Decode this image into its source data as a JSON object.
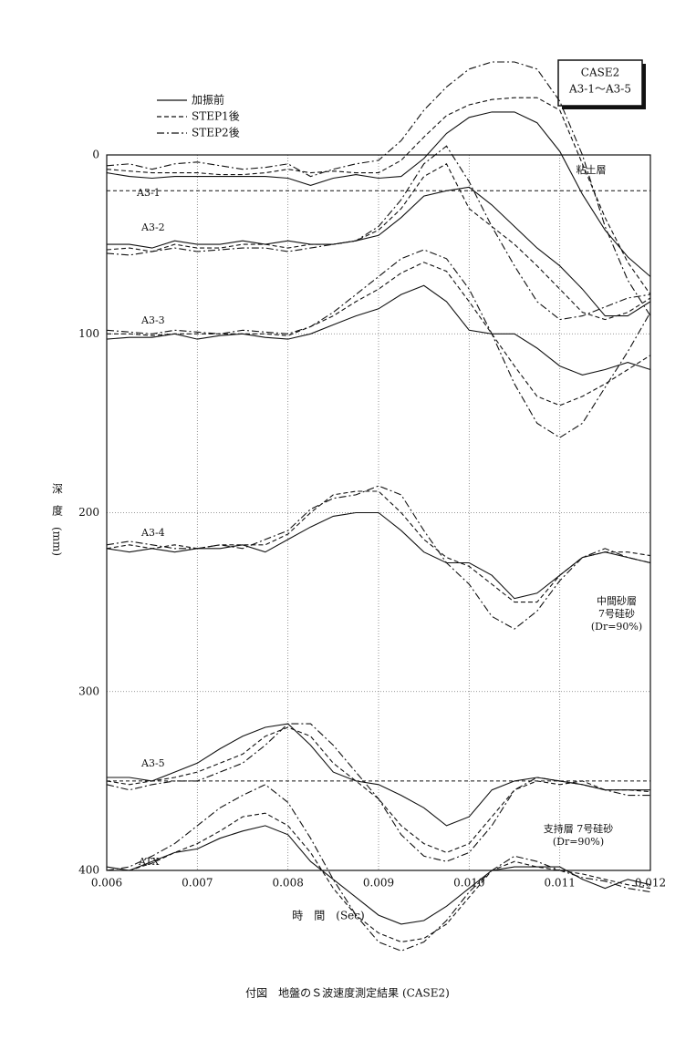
{
  "chart_data": {
    "type": "line",
    "title": "付図　地盤のＳ波速度測定結果 (CASE2)",
    "case_box": [
      "CASE2",
      "A3-1〜A3-5"
    ],
    "x_label": "時　間　(Sec)",
    "y_label": "深　度　(mm)",
    "x": [
      0.006,
      0.00625,
      0.0065,
      0.00675,
      0.007,
      0.00725,
      0.0075,
      0.00775,
      0.008,
      0.00825,
      0.0085,
      0.00875,
      0.009,
      0.00925,
      0.0095,
      0.00975,
      0.01,
      0.01025,
      0.0105,
      0.01075,
      0.011,
      0.01125,
      0.0115,
      0.01175,
      0.012
    ],
    "xlim": [
      0.006,
      0.012
    ],
    "xticks": [
      0.006,
      0.007,
      0.008,
      0.009,
      {
        "value": 0.01,
        "label": "0.010"
      },
      0.011,
      0.012
    ],
    "ylim": [
      0,
      400
    ],
    "y_reversed": true,
    "yticks": [
      0,
      100,
      200,
      300,
      400
    ],
    "grid": true,
    "legend": [
      {
        "name": "加振前",
        "dash": "solid"
      },
      {
        "name": "STEP1後",
        "dash": "dashed"
      },
      {
        "name": "STEP2後",
        "dash": "dashdot"
      }
    ],
    "reference_lines": [
      20,
      350
    ],
    "groups": [
      {
        "label": "A3-1",
        "lines": [
          [
            10,
            12,
            13,
            12,
            12,
            12,
            12,
            12,
            13,
            17,
            13,
            11,
            13,
            12,
            2,
            -12,
            -21,
            -24,
            -24,
            -18,
            -2,
            22,
            42,
            57,
            68
          ],
          [
            8,
            9,
            10,
            10,
            10,
            11,
            11,
            10,
            8,
            10,
            9,
            10,
            10,
            3,
            -10,
            -22,
            -28,
            -31,
            -32,
            -32,
            -25,
            5,
            35,
            60,
            78
          ],
          [
            6,
            5,
            8,
            5,
            4,
            6,
            8,
            7,
            5,
            12,
            8,
            5,
            3,
            -8,
            -25,
            -38,
            -48,
            -52,
            -52,
            -48,
            -30,
            0,
            40,
            70,
            90
          ]
        ]
      },
      {
        "label": "A3-2",
        "lines": [
          [
            50,
            50,
            52,
            48,
            50,
            50,
            48,
            50,
            48,
            50,
            50,
            48,
            45,
            35,
            23,
            20,
            18,
            28,
            40,
            52,
            62,
            75,
            90,
            90,
            82
          ],
          [
            53,
            52,
            54,
            50,
            52,
            52,
            50,
            50,
            52,
            50,
            50,
            48,
            42,
            30,
            12,
            5,
            30,
            40,
            50,
            62,
            75,
            88,
            92,
            88,
            80
          ],
          [
            55,
            56,
            54,
            52,
            54,
            53,
            52,
            52,
            54,
            52,
            50,
            48,
            40,
            25,
            5,
            -5,
            15,
            40,
            62,
            82,
            92,
            90,
            85,
            80,
            78
          ]
        ]
      },
      {
        "label": "A3-3",
        "lines": [
          [
            103,
            102,
            102,
            100,
            103,
            101,
            100,
            102,
            103,
            100,
            95,
            90,
            86,
            78,
            73,
            82,
            98,
            100,
            100,
            108,
            118,
            123,
            120,
            116,
            120
          ],
          [
            100,
            100,
            101,
            100,
            100,
            100,
            100,
            100,
            101,
            96,
            90,
            82,
            75,
            66,
            60,
            65,
            82,
            100,
            118,
            135,
            140,
            135,
            128,
            120,
            112
          ],
          [
            98,
            99,
            100,
            98,
            99,
            100,
            98,
            99,
            100,
            96,
            88,
            78,
            68,
            58,
            53,
            58,
            75,
            100,
            128,
            150,
            158,
            150,
            130,
            110,
            88
          ]
        ]
      },
      {
        "label": "A3-4",
        "lines": [
          [
            220,
            222,
            220,
            222,
            220,
            220,
            218,
            222,
            215,
            208,
            202,
            200,
            200,
            210,
            222,
            228,
            228,
            235,
            248,
            245,
            235,
            225,
            222,
            225,
            228
          ],
          [
            220,
            218,
            220,
            218,
            220,
            218,
            218,
            218,
            212,
            200,
            190,
            188,
            188,
            200,
            215,
            225,
            230,
            240,
            250,
            250,
            235,
            225,
            222,
            222,
            224
          ],
          [
            218,
            216,
            218,
            220,
            220,
            218,
            220,
            215,
            210,
            198,
            192,
            190,
            185,
            190,
            210,
            228,
            240,
            258,
            265,
            255,
            238,
            225,
            220,
            225,
            228
          ]
        ]
      },
      {
        "label": "A3-5",
        "lines": [
          [
            348,
            348,
            350,
            345,
            340,
            332,
            325,
            320,
            318,
            330,
            345,
            350,
            352,
            358,
            365,
            375,
            370,
            355,
            350,
            348,
            350,
            352,
            355,
            355,
            355
          ],
          [
            350,
            352,
            350,
            348,
            345,
            340,
            335,
            325,
            320,
            325,
            340,
            350,
            360,
            375,
            385,
            390,
            385,
            370,
            355,
            350,
            352,
            350,
            355,
            355,
            356
          ],
          [
            352,
            355,
            352,
            350,
            350,
            345,
            340,
            330,
            318,
            318,
            330,
            345,
            360,
            380,
            392,
            395,
            390,
            375,
            355,
            348,
            350,
            352,
            355,
            358,
            358
          ]
        ]
      },
      {
        "label": "ATX",
        "lines": [
          [
            398,
            400,
            395,
            390,
            388,
            382,
            378,
            375,
            380,
            395,
            405,
            415,
            425,
            430,
            428,
            420,
            410,
            400,
            398,
            398,
            398,
            405,
            410,
            405,
            408
          ],
          [
            400,
            400,
            396,
            390,
            385,
            378,
            370,
            368,
            375,
            390,
            410,
            425,
            435,
            440,
            438,
            430,
            415,
            400,
            395,
            398,
            400,
            402,
            405,
            408,
            410
          ],
          [
            400,
            398,
            392,
            385,
            375,
            365,
            358,
            352,
            362,
            382,
            405,
            425,
            440,
            445,
            440,
            428,
            412,
            400,
            392,
            395,
            400,
            404,
            406,
            410,
            412
          ]
        ]
      }
    ],
    "annotations": [
      [
        "粘土層"
      ],
      [
        "中間砂層",
        "7号硅砂",
        "(Dr=90%)"
      ],
      [
        "支持層 7号硅砂",
        "(Dr=90%)"
      ]
    ]
  }
}
